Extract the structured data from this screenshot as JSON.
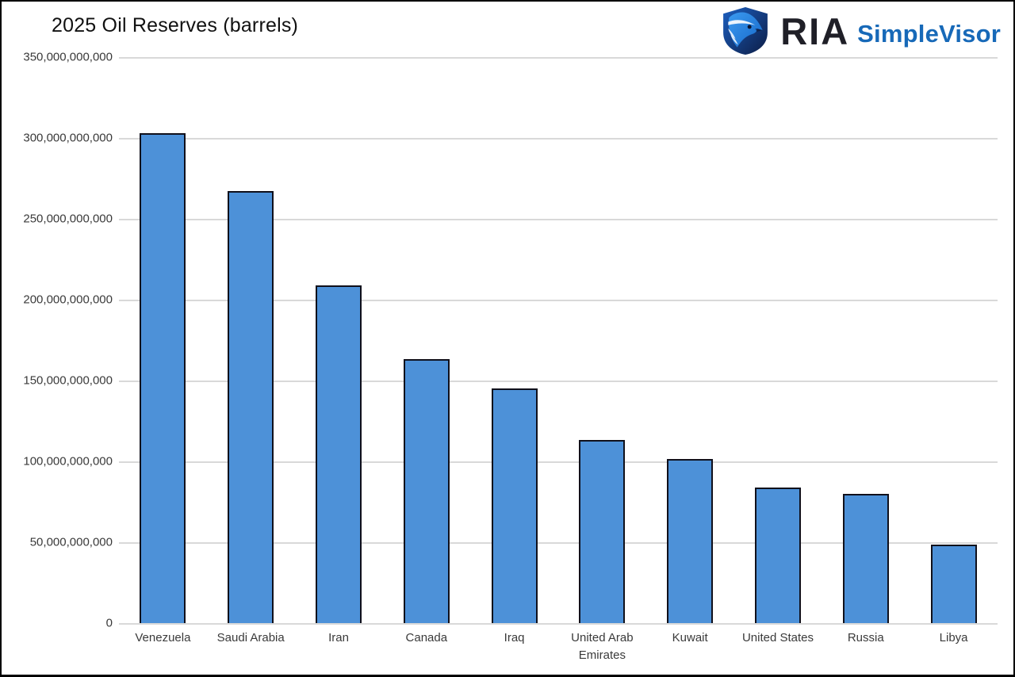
{
  "title": "2025 Oil Reserves (barrels)",
  "logo": {
    "brand": "RIA",
    "product": "SimpleVisor",
    "icon": "ria-eagle-shield",
    "brand_color": "#1f1f27",
    "product_color": "#1769b8"
  },
  "chart_data": {
    "type": "bar",
    "title": "2025 Oil Reserves (barrels)",
    "categories": [
      "Venezuela",
      "Saudi Arabia",
      "Iran",
      "Canada",
      "Iraq",
      "United Arab Emirates",
      "Kuwait",
      "United States",
      "Russia",
      "Libya"
    ],
    "values": [
      303000000000,
      267000000000,
      208600000000,
      163000000000,
      145000000000,
      113000000000,
      101500000000,
      84000000000,
      80000000000,
      48400000000
    ],
    "xlabel": "",
    "ylabel": "",
    "ylim": [
      0,
      350000000000
    ],
    "ytick_step": 50000000000,
    "ytick_labels": [
      "0",
      "50,000,000,000",
      "100,000,000,000",
      "150,000,000,000",
      "200,000,000,000",
      "250,000,000,000",
      "300,000,000,000",
      "350,000,000,000"
    ],
    "grid": true,
    "legend": false,
    "bar_fill": "#4d91d8",
    "bar_border": "#10101b",
    "gridline_color": "#d9d9d9",
    "tick_format": "comma"
  }
}
